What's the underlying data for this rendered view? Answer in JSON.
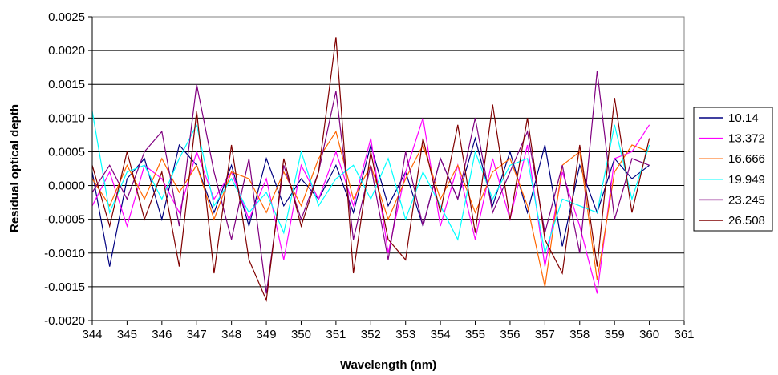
{
  "chart_data": {
    "type": "line",
    "title": "",
    "xlabel": "Wavelength (nm)",
    "ylabel": "Residual optical depth",
    "xlim": [
      344,
      361
    ],
    "ylim": [
      -0.002,
      0.0025
    ],
    "x_ticks": [
      "344",
      "345",
      "346",
      "347",
      "348",
      "349",
      "350",
      "351",
      "352",
      "353",
      "354",
      "355",
      "356",
      "357",
      "358",
      "359",
      "360",
      "361"
    ],
    "y_ticks": [
      "0.0025",
      "0.0020",
      "0.0015",
      "0.0010",
      "0.0005",
      "0.0000",
      "-0.0005",
      "-0.0010",
      "-0.0015",
      "-0.0020"
    ],
    "grid": "horizontal",
    "legend_position": "right",
    "x": [
      344.0,
      344.5,
      345.0,
      345.5,
      346.0,
      346.5,
      347.0,
      347.5,
      348.0,
      348.5,
      349.0,
      349.5,
      350.0,
      350.5,
      351.0,
      351.5,
      352.0,
      352.5,
      353.0,
      353.5,
      354.0,
      354.5,
      355.0,
      355.5,
      356.0,
      356.5,
      357.0,
      357.5,
      358.0,
      358.5,
      359.0,
      359.5,
      360.0
    ],
    "series": [
      {
        "name": "10.14",
        "color": "#000080",
        "values": [
          0.0002,
          -0.0012,
          0.0001,
          0.0004,
          -0.0005,
          0.0006,
          0.0003,
          -0.0004,
          0.0003,
          -0.0006,
          0.0004,
          -0.0003,
          0.0001,
          -0.0002,
          0.0003,
          -0.0004,
          0.0006,
          -0.0003,
          0.0002,
          -0.0006,
          0.0004,
          -0.0002,
          0.0007,
          -0.0003,
          0.0005,
          -0.0004,
          0.0006,
          -0.0009,
          0.0003,
          -0.0004,
          0.0004,
          0.0001,
          0.0003
        ]
      },
      {
        "name": "13.372",
        "color": "#FF00FF",
        "values": [
          -0.0003,
          0.0002,
          -0.0006,
          0.0003,
          0.0001,
          -0.0004,
          0.0005,
          -0.0002,
          0.0002,
          -0.0005,
          0.0001,
          -0.0011,
          0.0003,
          -0.0002,
          0.0005,
          -0.0003,
          0.0007,
          -0.001,
          0.0002,
          0.001,
          -0.0006,
          0.0003,
          -0.0008,
          0.0004,
          -0.0005,
          0.0006,
          -0.0012,
          0.0002,
          -0.0006,
          -0.0016,
          0.0004,
          0.0005,
          0.0009
        ]
      },
      {
        "name": "16.666",
        "color": "#FF6600",
        "values": [
          0.0001,
          -0.0003,
          0.0003,
          -0.0002,
          0.0004,
          -0.0001,
          0.0003,
          -0.0005,
          0.0002,
          0.0001,
          -0.0004,
          0.0002,
          -0.0003,
          0.0004,
          0.0008,
          -0.0002,
          0.0003,
          -0.0005,
          0.0001,
          0.0006,
          -0.0002,
          0.0003,
          -0.0004,
          0.0002,
          0.0004,
          -0.0003,
          -0.0015,
          0.0003,
          0.0005,
          -0.0014,
          0.0002,
          0.0006,
          0.0005
        ]
      },
      {
        "name": "19.949",
        "color": "#00FFFF",
        "values": [
          0.0011,
          -0.0004,
          0.0002,
          0.0003,
          -0.0002,
          0.0004,
          0.0009,
          -0.0003,
          0.0001,
          -0.0004,
          -0.0001,
          -0.0007,
          0.0005,
          -0.0003,
          0.0001,
          0.0003,
          -0.0002,
          0.0004,
          -0.0005,
          0.0002,
          -0.0003,
          -0.0008,
          0.0005,
          -0.0002,
          0.0003,
          0.0004,
          -0.001,
          -0.0002,
          -0.0003,
          -0.0004,
          0.0009,
          -0.0002,
          0.0006
        ]
      },
      {
        "name": "23.245",
        "color": "#800080",
        "values": [
          -0.0001,
          0.0003,
          -0.0002,
          0.0005,
          0.0008,
          -0.0006,
          0.0015,
          0.0002,
          -0.0008,
          0.0004,
          -0.0016,
          0.0003,
          -0.0005,
          0.0002,
          0.0014,
          -0.0008,
          0.0003,
          -0.0011,
          0.0005,
          -0.0006,
          0.0004,
          -0.0002,
          0.001,
          -0.0004,
          0.0002,
          0.0008,
          -0.0007,
          0.0003,
          -0.001,
          0.0017,
          -0.0005,
          0.0004,
          0.0003
        ]
      },
      {
        "name": "26.508",
        "color": "#800000",
        "values": [
          0.0003,
          -0.0006,
          0.0005,
          -0.0005,
          0.0002,
          -0.0012,
          0.0011,
          -0.0013,
          0.0006,
          -0.0011,
          -0.0017,
          0.0004,
          -0.0006,
          0.0002,
          0.0022,
          -0.0013,
          0.0005,
          -0.0008,
          -0.0011,
          0.0007,
          -0.0004,
          0.0009,
          -0.0007,
          0.0012,
          -0.0005,
          0.001,
          -0.0008,
          -0.0013,
          0.0006,
          -0.0012,
          0.0013,
          -0.0004,
          0.0007
        ]
      }
    ]
  }
}
